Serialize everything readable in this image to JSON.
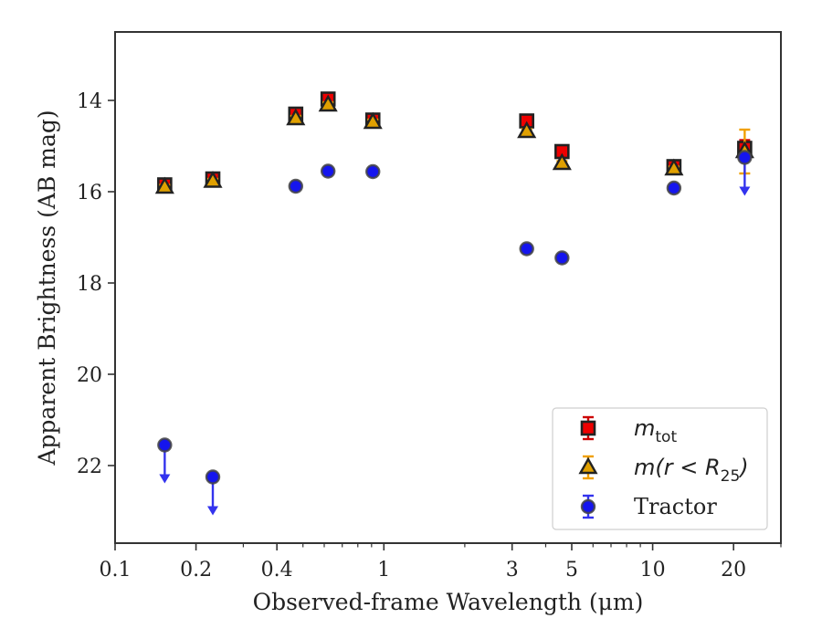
{
  "chart_data": {
    "type": "scatter",
    "title": "",
    "xlabel": "Observed-frame Wavelength (μm)",
    "ylabel": "Apparent Brightness (AB mag)",
    "x_scale": "log",
    "xlim": [
      0.1,
      30
    ],
    "ylim": [
      23.7,
      12.5
    ],
    "y_inverted": true,
    "grid": false,
    "x_ticks": [
      {
        "value": 0.1,
        "label": "0.1"
      },
      {
        "value": 0.2,
        "label": "0.2"
      },
      {
        "value": 0.4,
        "label": "0.4"
      },
      {
        "value": 1,
        "label": "1"
      },
      {
        "value": 3,
        "label": "3"
      },
      {
        "value": 5,
        "label": "5"
      },
      {
        "value": 10,
        "label": "10"
      },
      {
        "value": 20,
        "label": "20"
      }
    ],
    "x_minor_ticks": [
      0.3,
      0.5,
      0.6,
      0.7,
      0.8,
      0.9,
      2,
      4,
      6,
      7,
      8,
      9,
      30
    ],
    "y_ticks": [
      {
        "value": 14,
        "label": "14"
      },
      {
        "value": 16,
        "label": "16"
      },
      {
        "value": 18,
        "label": "18"
      },
      {
        "value": 20,
        "label": "20"
      },
      {
        "value": 22,
        "label": "22"
      }
    ],
    "legend": {
      "placement": "lower-right",
      "entries": [
        {
          "series": "m_tot",
          "label_main": "m",
          "label_sub": "tot",
          "label_tail": ""
        },
        {
          "series": "m_r25",
          "label_main": "m(r < R",
          "label_sub": "25",
          "label_tail": ")"
        },
        {
          "series": "tractor",
          "label_main": "Tractor",
          "label_sub": "",
          "label_tail": ""
        }
      ]
    },
    "series": [
      {
        "id": "m_tot",
        "marker": "square",
        "color": "#ee0000",
        "errcolor": "#cc0000",
        "edgecolor": "#222222",
        "points": [
          {
            "x": 0.153,
            "y": 15.85,
            "err": 0.05
          },
          {
            "x": 0.231,
            "y": 15.72,
            "err": 0.05
          },
          {
            "x": 0.47,
            "y": 14.3,
            "err": 0.06
          },
          {
            "x": 0.62,
            "y": 13.97,
            "err": 0.06
          },
          {
            "x": 0.91,
            "y": 14.43,
            "err": 0.06
          },
          {
            "x": 3.4,
            "y": 14.45,
            "err": 0.05
          },
          {
            "x": 4.6,
            "y": 15.12,
            "err": 0.05
          },
          {
            "x": 12.0,
            "y": 15.45,
            "err": 0.05
          },
          {
            "x": 22.0,
            "y": 15.05,
            "err": 0.18
          }
        ]
      },
      {
        "id": "m_r25",
        "marker": "triangle",
        "color": "#e0a000",
        "errcolor": "#f0a000",
        "edgecolor": "#222222",
        "points": [
          {
            "x": 0.153,
            "y": 15.9,
            "err": 0.05
          },
          {
            "x": 0.231,
            "y": 15.77,
            "err": 0.05
          },
          {
            "x": 0.47,
            "y": 14.4,
            "err": 0.06
          },
          {
            "x": 0.62,
            "y": 14.1,
            "err": 0.06
          },
          {
            "x": 0.91,
            "y": 14.48,
            "err": 0.06
          },
          {
            "x": 3.4,
            "y": 14.68,
            "err": 0.05
          },
          {
            "x": 4.6,
            "y": 15.38,
            "err": 0.05
          },
          {
            "x": 12.0,
            "y": 15.5,
            "err": 0.05
          },
          {
            "x": 22.0,
            "y": 15.12,
            "err": 0.48
          }
        ]
      },
      {
        "id": "tractor",
        "marker": "circle",
        "color": "#1515ee",
        "errcolor": "#3333ee",
        "edgecolor": "#444444",
        "points": [
          {
            "x": 0.153,
            "y": 21.55,
            "upper_limit": true
          },
          {
            "x": 0.231,
            "y": 22.25,
            "upper_limit": true
          },
          {
            "x": 0.47,
            "y": 15.88,
            "err": 0.05
          },
          {
            "x": 0.62,
            "y": 15.55,
            "err": 0.05
          },
          {
            "x": 0.91,
            "y": 15.56,
            "err": 0.05
          },
          {
            "x": 3.4,
            "y": 17.25,
            "err": 0.05
          },
          {
            "x": 4.6,
            "y": 17.45,
            "err": 0.05
          },
          {
            "x": 12.0,
            "y": 15.92,
            "err": 0.05
          },
          {
            "x": 22.0,
            "y": 15.25,
            "upper_limit": true
          }
        ]
      }
    ]
  }
}
